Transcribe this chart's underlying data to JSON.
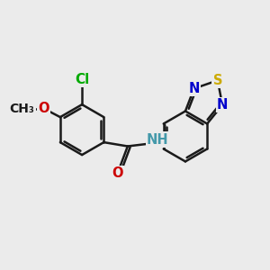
{
  "bg_color": "#ebebeb",
  "bond_color": "#1a1a1a",
  "bond_width": 1.8,
  "atom_colors": {
    "Cl": "#00aa00",
    "O": "#cc0000",
    "N": "#0000cc",
    "S": "#ccaa00",
    "H": "#4499aa",
    "C": "#1a1a1a"
  },
  "fs": 10.5
}
